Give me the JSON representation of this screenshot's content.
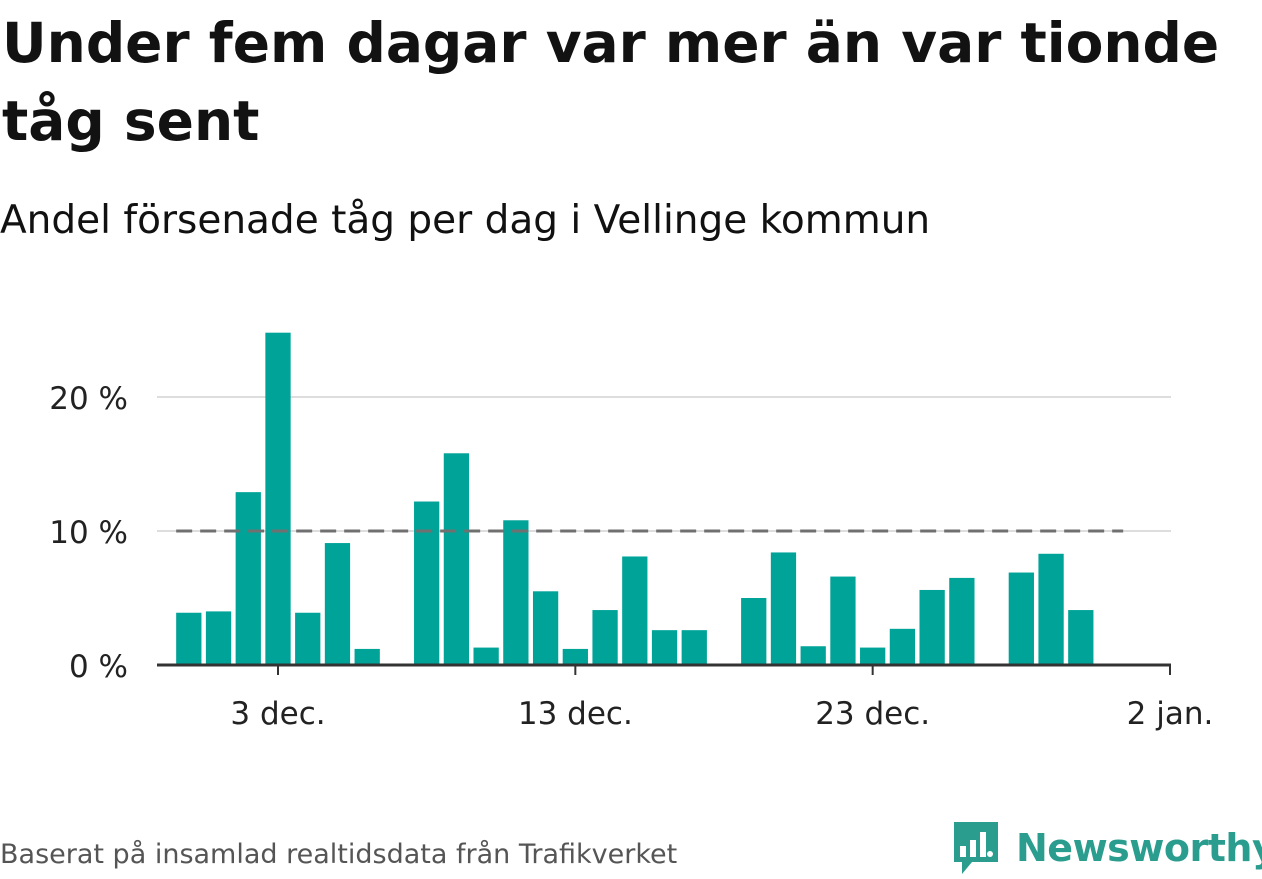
{
  "title": "Under fem dagar var mer än var tionde tåg sent",
  "subtitle": "Andel försenade tåg per dag i Vellinge kommun",
  "footer": "Baserat på insamlad realtidsdata från Trafikverket",
  "logo": {
    "text": "Newsworthy",
    "icon": "newsworthy-bar-chart-icon"
  },
  "colors": {
    "bar": "#00a398",
    "grid": "#dddddd",
    "axis": "#333333",
    "reference": "#707070",
    "logo": "#2a9d8f"
  },
  "chart_data": {
    "type": "bar",
    "x_type": "date",
    "xlim": [
      "2020-11-28",
      "2021-01-02"
    ],
    "ylim": [
      0,
      25
    ],
    "ytick_values": [
      0,
      10,
      20
    ],
    "ytick_labels": [
      "0 %",
      "10 %",
      "20 %"
    ],
    "xtick_dates": [
      "2020-12-03",
      "2020-12-13",
      "2020-12-23",
      "2021-01-02"
    ],
    "xtick_labels": [
      "3 dec.",
      "13 dec.",
      "23 dec.",
      "2 jan."
    ],
    "reference_line": {
      "value": 10,
      "from": "2020-11-30",
      "to": "2020-12-31",
      "style": "dashed"
    },
    "grid": true,
    "bars": [
      {
        "date": "2020-11-30",
        "value": 3.9
      },
      {
        "date": "2020-12-01",
        "value": 4.0
      },
      {
        "date": "2020-12-02",
        "value": 12.9
      },
      {
        "date": "2020-12-03",
        "value": 24.8
      },
      {
        "date": "2020-12-04",
        "value": 3.9
      },
      {
        "date": "2020-12-05",
        "value": 9.1
      },
      {
        "date": "2020-12-06",
        "value": 1.2
      },
      {
        "date": "2020-12-08",
        "value": 12.2
      },
      {
        "date": "2020-12-09",
        "value": 15.8
      },
      {
        "date": "2020-12-10",
        "value": 1.3
      },
      {
        "date": "2020-12-11",
        "value": 10.8
      },
      {
        "date": "2020-12-12",
        "value": 5.5
      },
      {
        "date": "2020-12-13",
        "value": 1.2
      },
      {
        "date": "2020-12-14",
        "value": 4.1
      },
      {
        "date": "2020-12-15",
        "value": 8.1
      },
      {
        "date": "2020-12-16",
        "value": 2.6
      },
      {
        "date": "2020-12-17",
        "value": 2.6
      },
      {
        "date": "2020-12-19",
        "value": 5.0
      },
      {
        "date": "2020-12-20",
        "value": 8.4
      },
      {
        "date": "2020-12-21",
        "value": 1.4
      },
      {
        "date": "2020-12-22",
        "value": 6.6
      },
      {
        "date": "2020-12-23",
        "value": 1.3
      },
      {
        "date": "2020-12-24",
        "value": 2.7
      },
      {
        "date": "2020-12-25",
        "value": 5.6
      },
      {
        "date": "2020-12-26",
        "value": 6.5
      },
      {
        "date": "2020-12-28",
        "value": 6.9
      },
      {
        "date": "2020-12-29",
        "value": 8.3
      },
      {
        "date": "2020-12-30",
        "value": 4.1
      }
    ]
  }
}
